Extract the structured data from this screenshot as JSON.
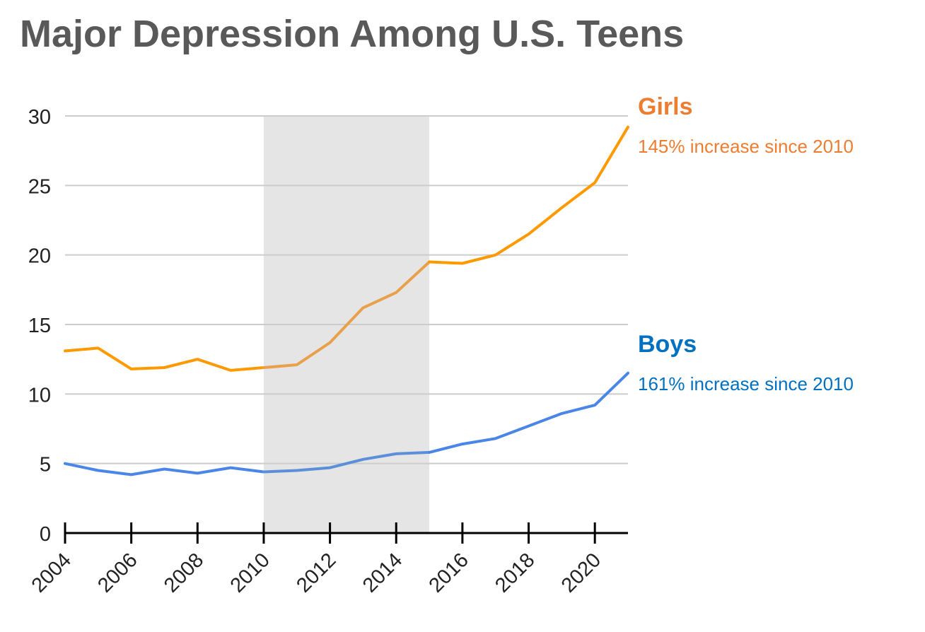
{
  "chart_data": {
    "type": "line",
    "title": "Major Depression Among U.S. Teens",
    "xlabel": "",
    "ylabel": "",
    "ylim": [
      0,
      30
    ],
    "y_ticks": [
      "0",
      "5",
      "10",
      "15",
      "20",
      "25",
      "30"
    ],
    "x_ticks": [
      "2004",
      "2006",
      "2008",
      "2010",
      "2012",
      "2014",
      "2016",
      "2018",
      "2020"
    ],
    "x": [
      2004,
      2005,
      2006,
      2007,
      2008,
      2009,
      2010,
      2011,
      2012,
      2013,
      2014,
      2015,
      2016,
      2017,
      2018,
      2019,
      2020,
      2021
    ],
    "shaded_region": [
      2010,
      2015
    ],
    "grid": true,
    "series": [
      {
        "name": "Girls",
        "note": "145% increase since 2010",
        "color": "#FF9900",
        "shaded_color": "#E8A04B",
        "label_color": "#ED7D31",
        "values": [
          13.1,
          13.3,
          11.8,
          11.9,
          12.5,
          11.7,
          11.9,
          12.1,
          13.7,
          16.2,
          17.3,
          19.5,
          19.4,
          20.0,
          21.5,
          23.4,
          25.2,
          29.2
        ]
      },
      {
        "name": "Boys",
        "note": "161% increase since 2010",
        "color": "#4A86E8",
        "shaded_color": "#5B8FD9",
        "label_color": "#0070C0",
        "values": [
          5.0,
          4.5,
          4.2,
          4.6,
          4.3,
          4.7,
          4.4,
          4.5,
          4.7,
          5.3,
          5.7,
          5.8,
          6.4,
          6.8,
          7.7,
          8.6,
          9.2,
          11.5
        ]
      }
    ]
  }
}
